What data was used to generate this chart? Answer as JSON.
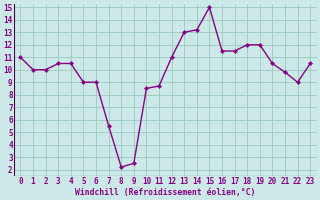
{
  "x": [
    0,
    1,
    2,
    3,
    4,
    5,
    6,
    7,
    8,
    9,
    10,
    11,
    12,
    13,
    14,
    15,
    16,
    17,
    18,
    19,
    20,
    21,
    22,
    23
  ],
  "y": [
    11,
    10,
    10,
    10.5,
    10.5,
    9,
    9,
    5.5,
    2.2,
    2.5,
    8.5,
    8.7,
    11,
    13,
    13.2,
    15,
    11.5,
    11.5,
    12,
    12,
    10.5,
    9.8,
    9,
    10.5
  ],
  "line_color": "#880088",
  "marker": "D",
  "marker_size": 2.0,
  "bg_color": "#cce8e8",
  "grid_color": "#99ccbb",
  "xlabel": "Windchill (Refroidissement éolien,°C)",
  "ylim_min": 2,
  "ylim_max": 15,
  "xlim_min": 0,
  "xlim_max": 23,
  "yticks": [
    2,
    3,
    4,
    5,
    6,
    7,
    8,
    9,
    10,
    11,
    12,
    13,
    14,
    15
  ],
  "xticks": [
    0,
    1,
    2,
    3,
    4,
    5,
    6,
    7,
    8,
    9,
    10,
    11,
    12,
    13,
    14,
    15,
    16,
    17,
    18,
    19,
    20,
    21,
    22,
    23
  ],
  "border_color": "#440044",
  "tick_fontsize": 5.5,
  "xlabel_fontsize": 5.8,
  "line_width": 1.0
}
